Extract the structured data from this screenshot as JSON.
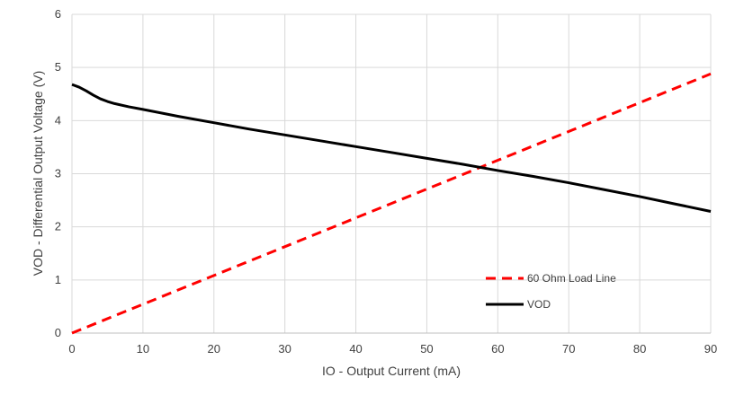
{
  "chart_data": {
    "type": "line",
    "title": "",
    "xlabel": "IO - Output Current (mA)",
    "ylabel": "VOD - Differential Output Voltage (V)",
    "xlim": [
      0,
      90
    ],
    "ylim": [
      0,
      6
    ],
    "xticks": [
      0,
      10,
      20,
      30,
      40,
      50,
      60,
      70,
      80,
      90
    ],
    "yticks": [
      0,
      1,
      2,
      3,
      4,
      5,
      6
    ],
    "grid": true,
    "legend_position": "bottom-right",
    "series": [
      {
        "name": "60 Ohm Load Line",
        "color": "#ff0000",
        "style": "dashed",
        "x": [
          0,
          90
        ],
        "y": [
          0,
          4.88
        ]
      },
      {
        "name": "VOD",
        "color": "#000000",
        "style": "solid",
        "x": [
          0,
          1,
          2,
          3,
          4,
          5,
          6,
          8,
          10,
          15,
          20,
          25,
          30,
          35,
          40,
          45,
          50,
          55,
          60,
          65,
          70,
          75,
          80,
          85,
          90
        ],
        "y": [
          4.68,
          4.63,
          4.56,
          4.48,
          4.41,
          4.36,
          4.32,
          4.26,
          4.21,
          4.08,
          3.96,
          3.84,
          3.73,
          3.62,
          3.51,
          3.4,
          3.29,
          3.18,
          3.06,
          2.95,
          2.83,
          2.7,
          2.57,
          2.43,
          2.29
        ]
      }
    ]
  }
}
